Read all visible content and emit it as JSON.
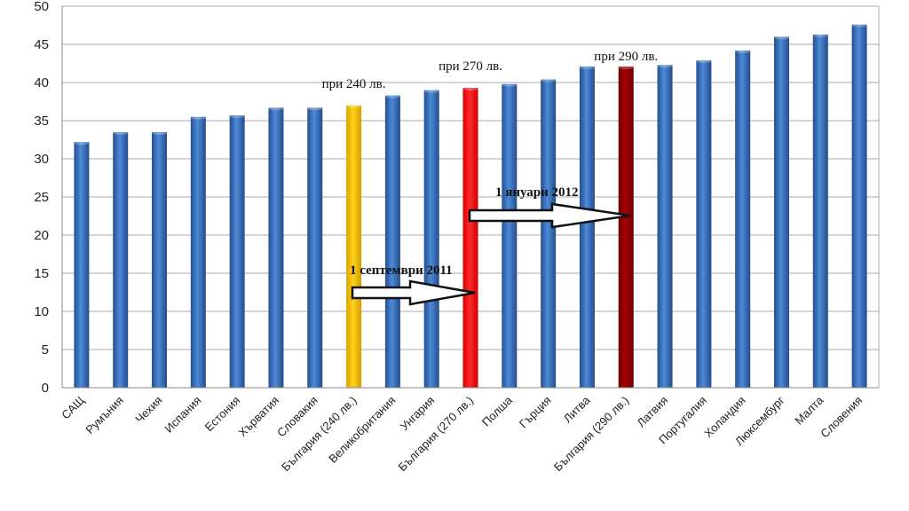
{
  "chart_data": {
    "type": "bar",
    "categories": [
      "САЩ",
      "Румъния",
      "Чехия",
      "Испания",
      "Естония",
      "Хърватия",
      "Словакия",
      "България (240 лв.)",
      "Великобритания",
      "Унгария",
      "България (270 лв.)",
      "Полша",
      "Гърция",
      "Литва",
      "България (290 лв.)",
      "Латвия",
      "Португалия",
      "Холандия",
      "Люксембург",
      "Малта",
      "Словения"
    ],
    "values": [
      32.2,
      33.5,
      33.5,
      35.5,
      35.7,
      36.7,
      36.7,
      37.0,
      38.3,
      39.0,
      39.3,
      39.8,
      40.4,
      42.1,
      42.1,
      42.3,
      42.9,
      44.2,
      46.0,
      46.3,
      47.6
    ],
    "bar_colors": {
      "default": "#3a74c4",
      "България (240 лв.)": "#f5c400",
      "България (270 лв.)": "#f01818",
      "България (290 лв.)": "#9a0000"
    },
    "ylim": [
      0,
      50
    ],
    "yticks": [
      0,
      5,
      10,
      15,
      20,
      25,
      30,
      35,
      40,
      45,
      50
    ],
    "grid": true,
    "title": "",
    "xlabel": "",
    "ylabel": "",
    "annotations": {
      "bar_240": "при 240 лв.",
      "bar_270": "при 270 лв.",
      "bar_290": "при 290 лв.",
      "arrow_2011": "1 септември 2011",
      "arrow_2012": "1 януари 2012"
    }
  }
}
